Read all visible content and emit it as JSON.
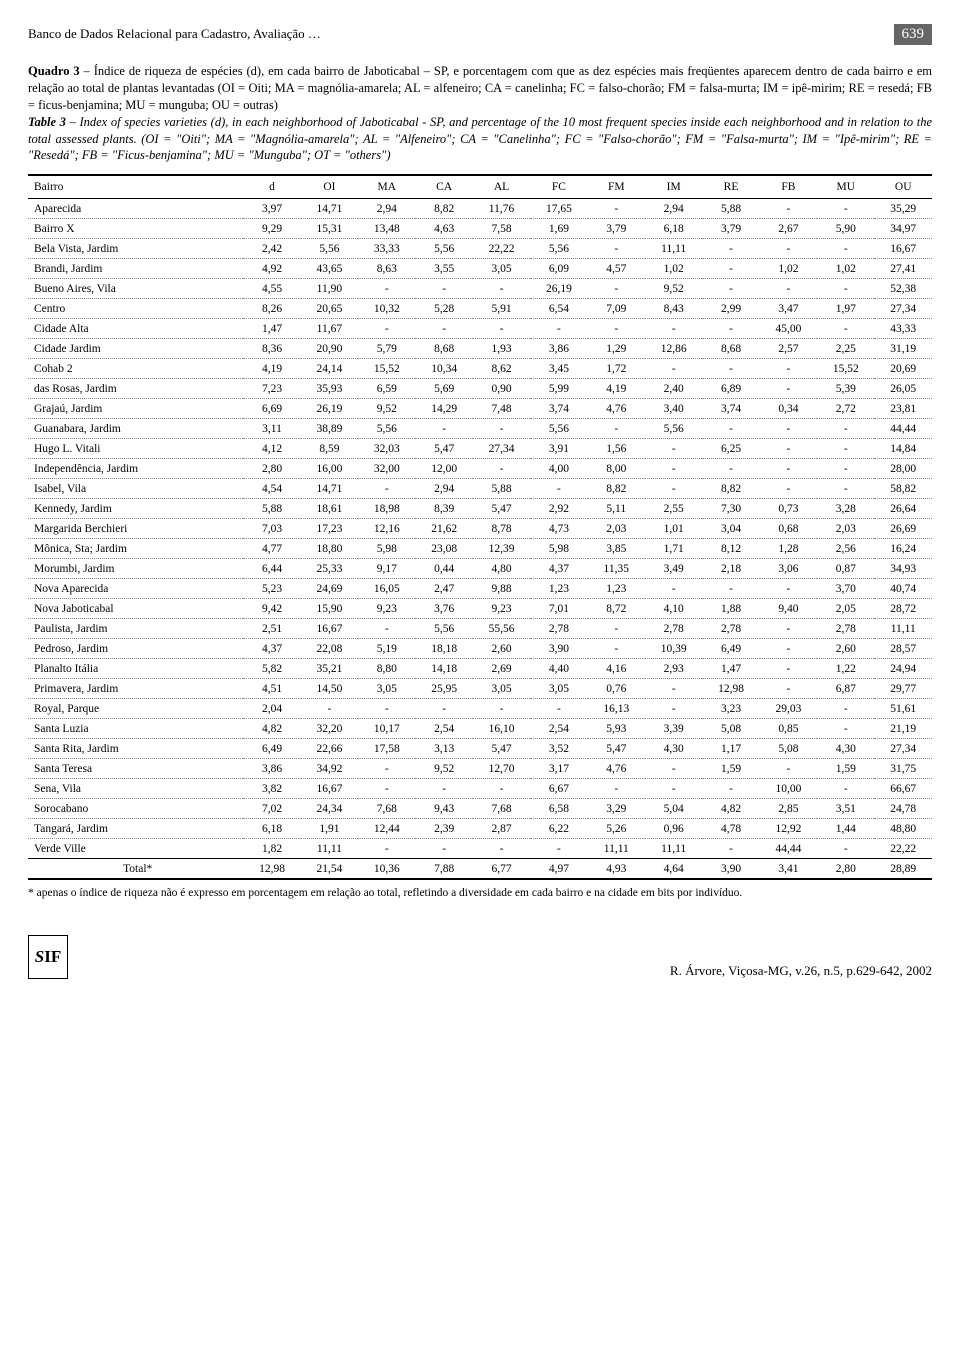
{
  "header": {
    "running_title": "Banco de Dados Relacional para Cadastro, Avaliação …",
    "page_number": "639"
  },
  "caption": {
    "quadro_label": "Quadro 3",
    "quadro_text": " – Índice de riqueza de espécies (d),  em cada bairro de Jaboticabal – SP, e porcentagem com que as dez espécies mais freqüentes aparecem dentro de cada bairro e em relação ao total de plantas levantadas (OI = Oiti; MA = magnólia-amarela; AL = alfeneiro; CA = canelinha; FC = falso-chorão; FM = falsa-murta; IM = ipê-mirim; RE = resedá; FB = ficus-benjamina; MU = munguba; OU = outras)",
    "table_label": "Table 3",
    "table_text": " – Index of species varieties (d), in each neighborhood of Jaboticabal - SP, and percentage of the 10 most frequent species inside each neighborhood and in relation to the total assessed plants. (OI = \"Oiti\"; MA = \"Magnólia-amarela\"; AL = \"Alfeneiro\"; CA = \"Canelinha\"; FC = \"Falso-chorão\"; FM = \"Falsa-murta\"; IM = \"Ipê-mirim\"; RE = \"Resedá\"; FB = \"Ficus-benjamina\"; MU = \"Munguba\"; OT = \"others\")"
  },
  "table": {
    "columns": [
      "Bairro",
      "d",
      "OI",
      "MA",
      "CA",
      "AL",
      "FC",
      "FM",
      "IM",
      "RE",
      "FB",
      "MU",
      "OU"
    ],
    "rows": [
      [
        "Aparecida",
        "3,97",
        "14,71",
        "2,94",
        "8,82",
        "11,76",
        "17,65",
        "-",
        "2,94",
        "5,88",
        "-",
        "-",
        "35,29"
      ],
      [
        "Bairro X",
        "9,29",
        "15,31",
        "13,48",
        "4,63",
        "7,58",
        "1,69",
        "3,79",
        "6,18",
        "3,79",
        "2,67",
        "5,90",
        "34,97"
      ],
      [
        "Bela Vista, Jardim",
        "2,42",
        "5,56",
        "33,33",
        "5,56",
        "22,22",
        "5,56",
        "-",
        "11,11",
        "-",
        "-",
        "-",
        "16,67"
      ],
      [
        "Brandi, Jardim",
        "4,92",
        "43,65",
        "8,63",
        "3,55",
        "3,05",
        "6,09",
        "4,57",
        "1,02",
        "-",
        "1,02",
        "1,02",
        "27,41"
      ],
      [
        "Bueno Aires, Vila",
        "4,55",
        "11,90",
        "-",
        "-",
        "-",
        "26,19",
        "-",
        "9,52",
        "-",
        "-",
        "-",
        "52,38"
      ],
      [
        "Centro",
        "8,26",
        "20,65",
        "10,32",
        "5,28",
        "5,91",
        "6,54",
        "7,09",
        "8,43",
        "2,99",
        "3,47",
        "1,97",
        "27,34"
      ],
      [
        "Cidade Alta",
        "1,47",
        "11,67",
        "-",
        "-",
        "-",
        "-",
        "-",
        "-",
        "-",
        "45,00",
        "-",
        "43,33"
      ],
      [
        "Cidade Jardim",
        "8,36",
        "20,90",
        "5,79",
        "8,68",
        "1,93",
        "3,86",
        "1,29",
        "12,86",
        "8,68",
        "2,57",
        "2,25",
        "31,19"
      ],
      [
        "Cohab 2",
        "4,19",
        "24,14",
        "15,52",
        "10,34",
        "8,62",
        "3,45",
        "1,72",
        "-",
        "-",
        "-",
        "15,52",
        "20,69"
      ],
      [
        "das Rosas, Jardim",
        "7,23",
        "35,93",
        "6,59",
        "5,69",
        "0,90",
        "5,99",
        "4,19",
        "2,40",
        "6,89",
        "-",
        "5,39",
        "26,05"
      ],
      [
        "Grajaú, Jardim",
        "6,69",
        "26,19",
        "9,52",
        "14,29",
        "7,48",
        "3,74",
        "4,76",
        "3,40",
        "3,74",
        "0,34",
        "2,72",
        "23,81"
      ],
      [
        "Guanabara, Jardim",
        "3,11",
        "38,89",
        "5,56",
        "-",
        "-",
        "5,56",
        "-",
        "5,56",
        "-",
        "-",
        "-",
        "44,44"
      ],
      [
        "Hugo L. Vitali",
        "4,12",
        "8,59",
        "32,03",
        "5,47",
        "27,34",
        "3,91",
        "1,56",
        "-",
        "6,25",
        "-",
        "-",
        "14,84"
      ],
      [
        "Independência, Jardim",
        "2,80",
        "16,00",
        "32,00",
        "12,00",
        "-",
        "4,00",
        "8,00",
        "-",
        "-",
        "-",
        "-",
        "28,00"
      ],
      [
        "Isabel, Vila",
        "4,54",
        "14,71",
        "-",
        "2,94",
        "5,88",
        "-",
        "8,82",
        "-",
        "8,82",
        "-",
        "-",
        "58,82"
      ],
      [
        "Kennedy, Jardim",
        "5,88",
        "18,61",
        "18,98",
        "8,39",
        "5,47",
        "2,92",
        "5,11",
        "2,55",
        "7,30",
        "0,73",
        "3,28",
        "26,64"
      ],
      [
        "Margarida Berchieri",
        "7,03",
        "17,23",
        "12,16",
        "21,62",
        "8,78",
        "4,73",
        "2,03",
        "1,01",
        "3,04",
        "0,68",
        "2,03",
        "26,69"
      ],
      [
        "Mônica, Sta; Jardim",
        "4,77",
        "18,80",
        "5,98",
        "23,08",
        "12,39",
        "5,98",
        "3,85",
        "1,71",
        "8,12",
        "1,28",
        "2,56",
        "16,24"
      ],
      [
        "Morumbi, Jardim",
        "6,44",
        "25,33",
        "9,17",
        "0,44",
        "4,80",
        "4,37",
        "11,35",
        "3,49",
        "2,18",
        "3,06",
        "0,87",
        "34,93"
      ],
      [
        "Nova Aparecida",
        "5,23",
        "24,69",
        "16,05",
        "2,47",
        "9,88",
        "1,23",
        "1,23",
        "-",
        "-",
        "-",
        "3,70",
        "40,74"
      ],
      [
        "Nova Jaboticabal",
        "9,42",
        "15,90",
        "9,23",
        "3,76",
        "9,23",
        "7,01",
        "8,72",
        "4,10",
        "1,88",
        "9,40",
        "2,05",
        "28,72"
      ],
      [
        "Paulista, Jardim",
        "2,51",
        "16,67",
        "-",
        "5,56",
        "55,56",
        "2,78",
        "-",
        "2,78",
        "2,78",
        "-",
        "2,78",
        "11,11"
      ],
      [
        "Pedroso, Jardim",
        "4,37",
        "22,08",
        "5,19",
        "18,18",
        "2,60",
        "3,90",
        "-",
        "10,39",
        "6,49",
        "-",
        "2,60",
        "28,57"
      ],
      [
        "Planalto Itália",
        "5,82",
        "35,21",
        "8,80",
        "14,18",
        "2,69",
        "4,40",
        "4,16",
        "2,93",
        "1,47",
        "-",
        "1,22",
        "24,94"
      ],
      [
        "Primavera, Jardim",
        "4,51",
        "14,50",
        "3,05",
        "25,95",
        "3,05",
        "3,05",
        "0,76",
        "-",
        "12,98",
        "-",
        "6,87",
        "29,77"
      ],
      [
        "Royal, Parque",
        "2,04",
        "-",
        "-",
        "-",
        "-",
        "-",
        "16,13",
        "-",
        "3,23",
        "29,03",
        "-",
        "51,61"
      ],
      [
        "Santa Luzia",
        "4,82",
        "32,20",
        "10,17",
        "2,54",
        "16,10",
        "2,54",
        "5,93",
        "3,39",
        "5,08",
        "0,85",
        "-",
        "21,19"
      ],
      [
        "Santa Rita, Jardim",
        "6,49",
        "22,66",
        "17,58",
        "3,13",
        "5,47",
        "3,52",
        "5,47",
        "4,30",
        "1,17",
        "5,08",
        "4,30",
        "27,34"
      ],
      [
        "Santa Teresa",
        "3,86",
        "34,92",
        "-",
        "9,52",
        "12,70",
        "3,17",
        "4,76",
        "-",
        "1,59",
        "-",
        "1,59",
        "31,75"
      ],
      [
        "Sena, Vila",
        "3,82",
        "16,67",
        "-",
        "-",
        "-",
        "6,67",
        "-",
        "-",
        "-",
        "10,00",
        "-",
        "66,67"
      ],
      [
        "Sorocabano",
        "7,02",
        "24,34",
        "7,68",
        "9,43",
        "7,68",
        "6,58",
        "3,29",
        "5,04",
        "4,82",
        "2,85",
        "3,51",
        "24,78"
      ],
      [
        "Tangará, Jardim",
        "6,18",
        "1,91",
        "12,44",
        "2,39",
        "2,87",
        "6,22",
        "5,26",
        "0,96",
        "4,78",
        "12,92",
        "1,44",
        "48,80"
      ],
      [
        "Verde Ville",
        "1,82",
        "11,11",
        "-",
        "-",
        "-",
        "-",
        "11,11",
        "11,11",
        "-",
        "44,44",
        "-",
        "22,22"
      ]
    ],
    "total_row": [
      "Total*",
      "12,98",
      "21,54",
      "10,36",
      "7,88",
      "6,77",
      "4,97",
      "4,93",
      "4,64",
      "3,90",
      "3,41",
      "2,80",
      "28,89"
    ]
  },
  "footnote": "* apenas o índice de riqueza não é expresso em porcentagem em relação ao total, refletindo a diversidade em cada bairro e na cidade em bits por indivíduo.",
  "footer": {
    "logo_text": "SIF",
    "journal_ref": "R. Árvore, Viçosa-MG, v.26, n.5, p.629-642, 2002"
  }
}
